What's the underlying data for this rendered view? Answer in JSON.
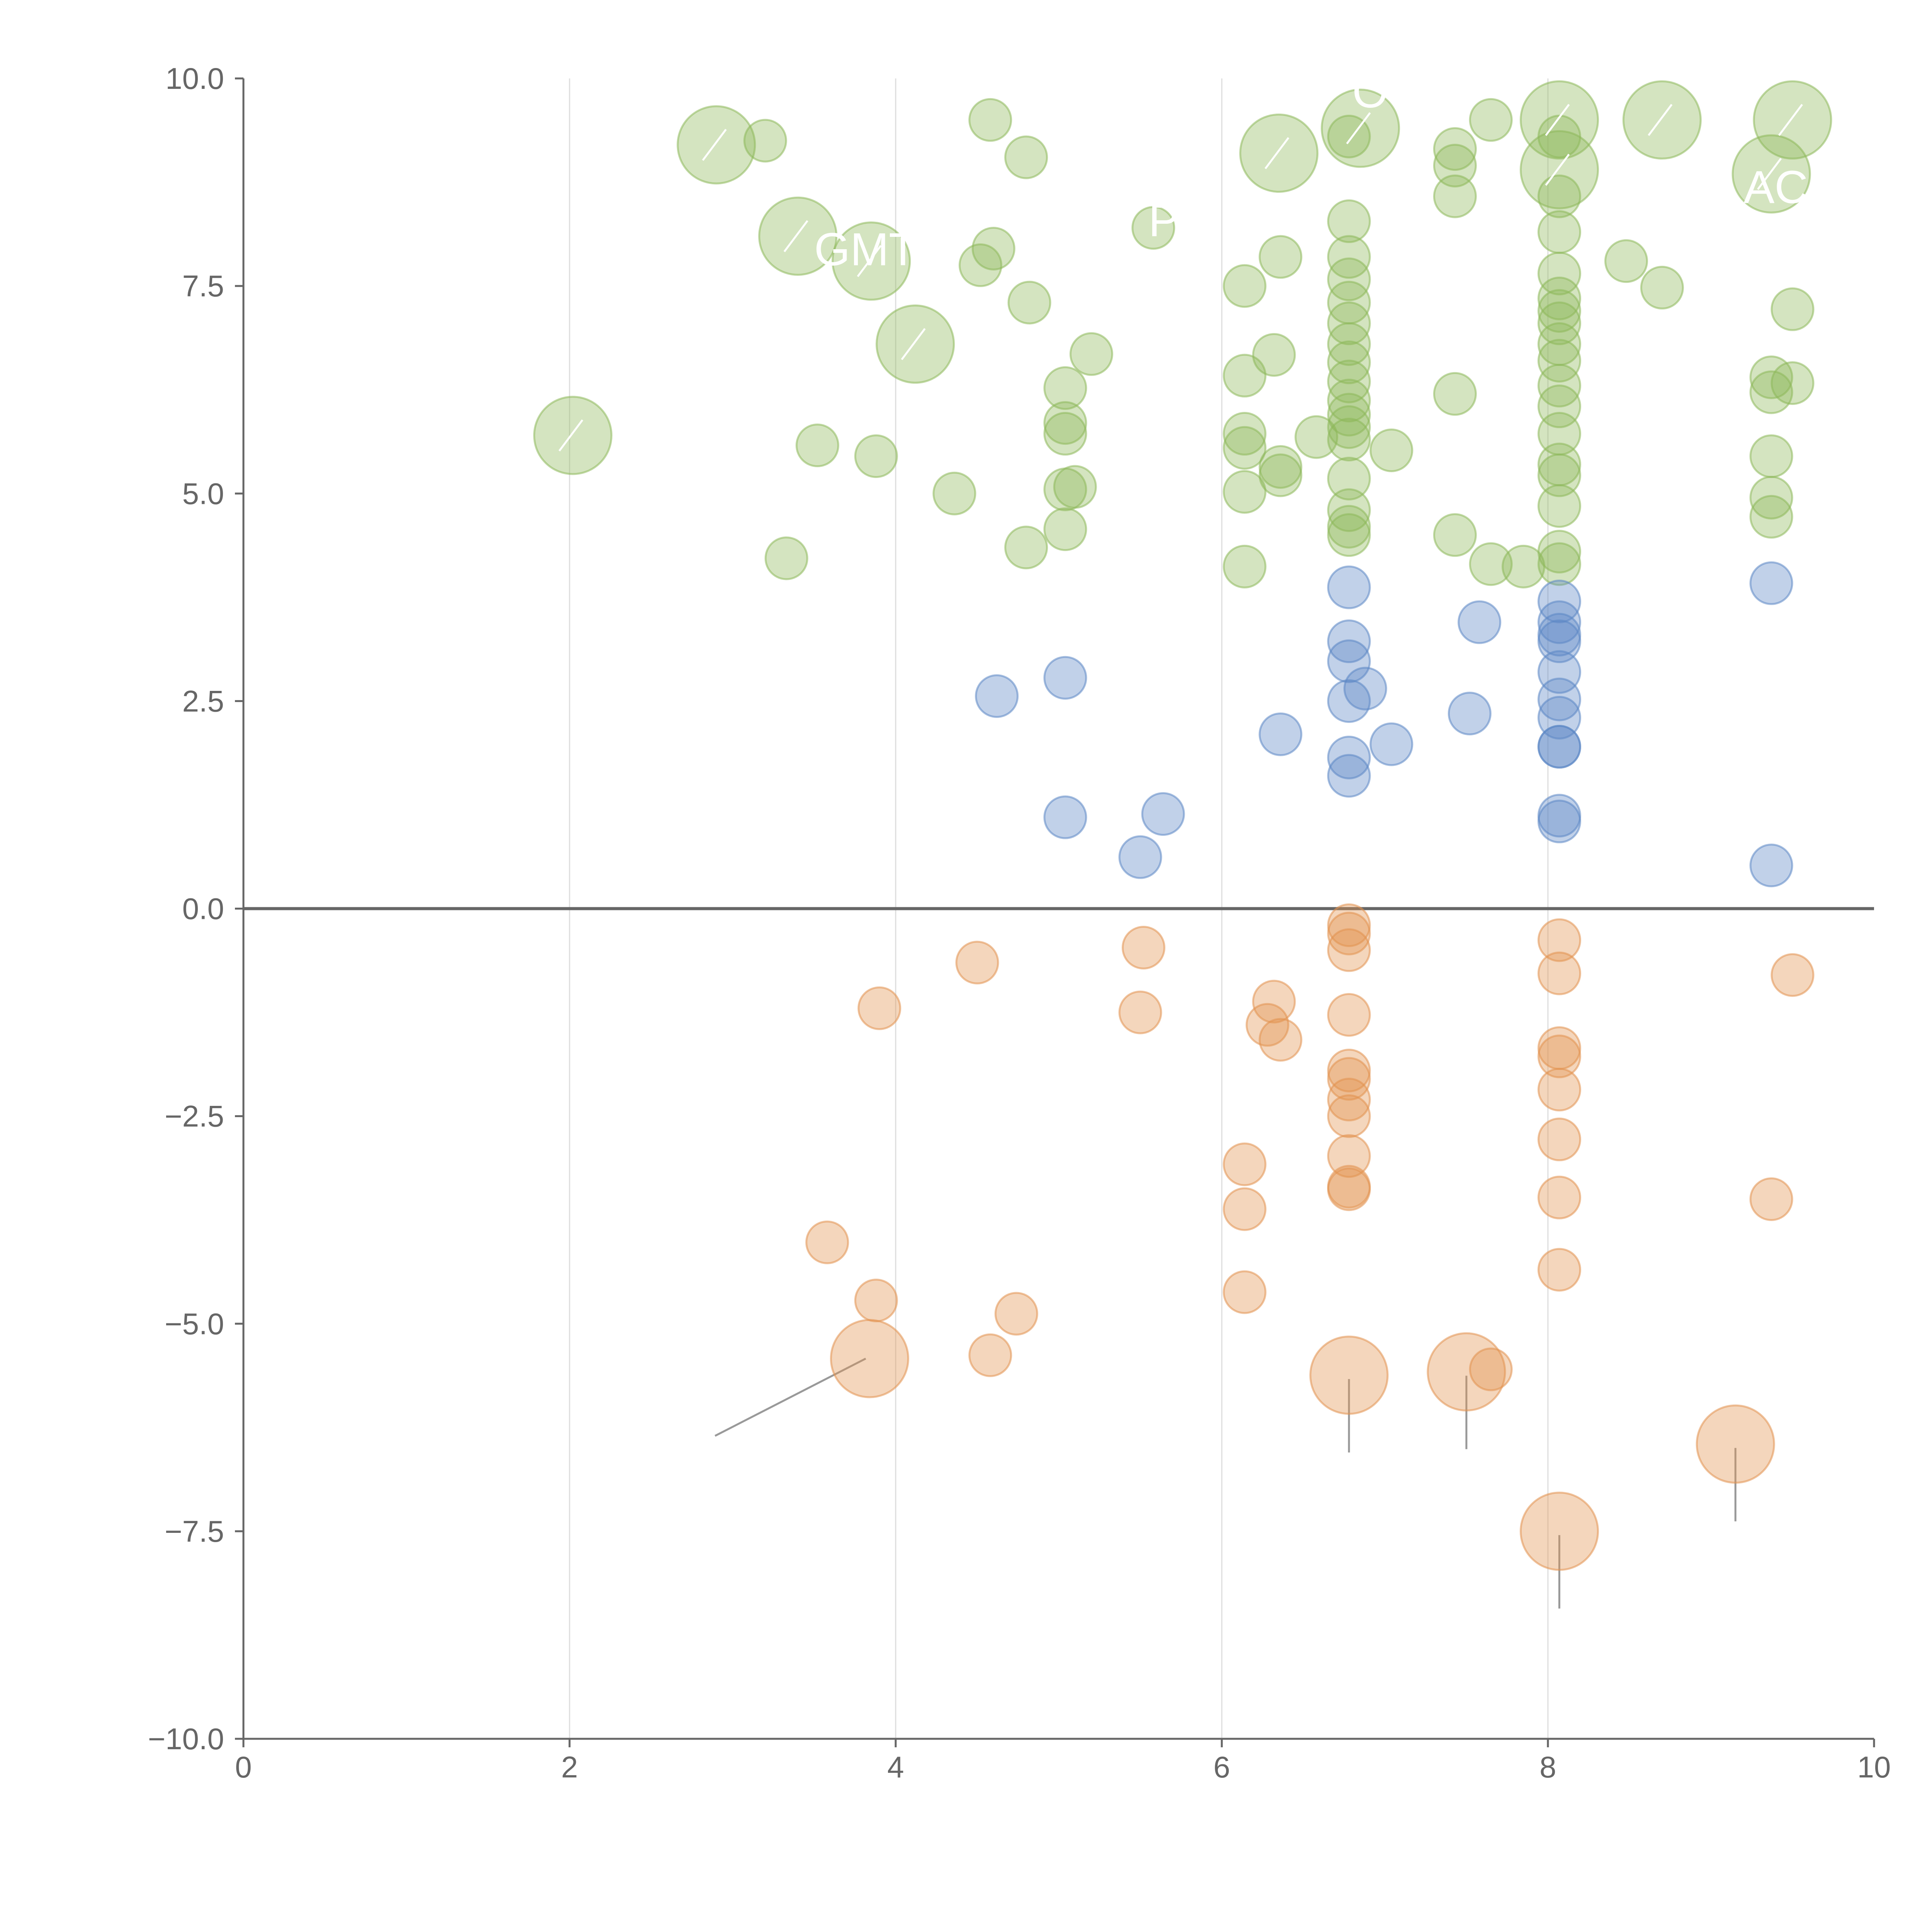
{
  "chart_data": {
    "type": "scatter",
    "title": "",
    "xlabel": "",
    "ylabel": "",
    "xlim": [
      0,
      10
    ],
    "ylim": [
      -10,
      10
    ],
    "xticks": [
      "0",
      "2",
      "4",
      "6",
      "8",
      "10"
    ],
    "yticks": [
      "10.0",
      "7.5",
      "5.0",
      "2.5",
      "0.0",
      "−2.5",
      "−5.0",
      "−7.5",
      "−10.0"
    ],
    "vgrid_x": [
      2,
      4,
      6,
      8
    ],
    "zero_line_y": 0,
    "colors": {
      "green": "#8db85a",
      "blue": "#5b86c4",
      "orange": "#e2924f",
      "axis": "#666666",
      "grid": "#dddddd"
    },
    "series": [
      {
        "name": "green",
        "color": "green",
        "points": [
          [
            2.9,
            9.2,
            1
          ],
          [
            3.2,
            9.25,
            0
          ],
          [
            3.4,
            8.1,
            1
          ],
          [
            3.85,
            7.8,
            1
          ],
          [
            4.12,
            6.8,
            1
          ],
          [
            2.02,
            5.7,
            1
          ],
          [
            3.52,
            5.58,
            0
          ],
          [
            3.88,
            5.45,
            0
          ],
          [
            3.33,
            4.22,
            0
          ],
          [
            4.36,
            5.0,
            0
          ],
          [
            4.58,
            9.5,
            0
          ],
          [
            4.8,
            9.05,
            0
          ],
          [
            4.52,
            7.75,
            0
          ],
          [
            4.6,
            7.95,
            0
          ],
          [
            4.82,
            7.3,
            0
          ],
          [
            5.2,
            6.68,
            0
          ],
          [
            5.04,
            6.27,
            0
          ],
          [
            5.04,
            5.85,
            0
          ],
          [
            5.04,
            5.72,
            0
          ],
          [
            5.04,
            5.05,
            0
          ],
          [
            5.1,
            5.08,
            0
          ],
          [
            4.8,
            4.35,
            0
          ],
          [
            5.04,
            4.57,
            0
          ],
          [
            5.58,
            8.2,
            0
          ],
          [
            6.35,
            9.1,
            1
          ],
          [
            6.36,
            7.85,
            0
          ],
          [
            6.14,
            7.5,
            0
          ],
          [
            6.14,
            6.42,
            0
          ],
          [
            6.32,
            6.67,
            0
          ],
          [
            6.14,
            5.72,
            0
          ],
          [
            6.14,
            5.55,
            0
          ],
          [
            6.36,
            5.32,
            0
          ],
          [
            6.36,
            5.22,
            0
          ],
          [
            6.14,
            5.02,
            0
          ],
          [
            6.14,
            4.12,
            0
          ],
          [
            6.58,
            5.68,
            0
          ],
          [
            7.04,
            5.52,
            0
          ],
          [
            6.85,
            9.4,
            1
          ],
          [
            6.78,
            9.3,
            0
          ],
          [
            6.78,
            8.28,
            0
          ],
          [
            6.78,
            7.85,
            0
          ],
          [
            6.78,
            7.58,
            0
          ],
          [
            6.78,
            7.3,
            0
          ],
          [
            6.78,
            7.05,
            0
          ],
          [
            6.78,
            6.8,
            0
          ],
          [
            6.78,
            6.58,
            0
          ],
          [
            6.78,
            6.35,
            0
          ],
          [
            6.78,
            6.12,
            0
          ],
          [
            6.78,
            5.95,
            0
          ],
          [
            6.78,
            5.8,
            0
          ],
          [
            6.78,
            5.65,
            0
          ],
          [
            6.78,
            5.18,
            0
          ],
          [
            6.78,
            4.8,
            0
          ],
          [
            6.78,
            4.6,
            0
          ],
          [
            6.78,
            4.5,
            0
          ],
          [
            7.43,
            9.15,
            0
          ],
          [
            7.43,
            8.95,
            0
          ],
          [
            7.43,
            8.58,
            0
          ],
          [
            7.65,
            9.5,
            0
          ],
          [
            7.43,
            6.2,
            0
          ],
          [
            7.43,
            4.5,
            0
          ],
          [
            7.65,
            4.15,
            0
          ],
          [
            7.85,
            4.12,
            0
          ],
          [
            8.07,
            9.5,
            1
          ],
          [
            8.07,
            8.9,
            1
          ],
          [
            8.07,
            9.3,
            0
          ],
          [
            8.07,
            8.58,
            0
          ],
          [
            8.07,
            8.15,
            0
          ],
          [
            8.07,
            7.65,
            0
          ],
          [
            8.07,
            7.35,
            0
          ],
          [
            8.07,
            7.2,
            0
          ],
          [
            8.07,
            7.05,
            0
          ],
          [
            8.07,
            6.8,
            0
          ],
          [
            8.07,
            6.6,
            0
          ],
          [
            8.07,
            6.3,
            0
          ],
          [
            8.07,
            6.05,
            0
          ],
          [
            8.07,
            5.72,
            0
          ],
          [
            8.07,
            5.35,
            0
          ],
          [
            8.07,
            5.22,
            0
          ],
          [
            8.07,
            4.85,
            0
          ],
          [
            8.07,
            4.3,
            0
          ],
          [
            8.07,
            4.15,
            0
          ],
          [
            8.48,
            7.8,
            0
          ],
          [
            8.7,
            7.48,
            0
          ],
          [
            8.7,
            9.5,
            1
          ],
          [
            9.37,
            8.85,
            1
          ],
          [
            9.5,
            9.5,
            1
          ],
          [
            9.5,
            7.22,
            0
          ],
          [
            9.37,
            6.4,
            0
          ],
          [
            9.37,
            6.22,
            0
          ],
          [
            9.5,
            6.33,
            0
          ],
          [
            9.37,
            5.45,
            0
          ],
          [
            9.37,
            4.95,
            0
          ],
          [
            9.37,
            4.72,
            0
          ]
        ]
      },
      {
        "name": "blue",
        "color": "blue",
        "points": [
          [
            4.62,
            2.56,
            0
          ],
          [
            5.04,
            2.78,
            0
          ],
          [
            5.04,
            1.1,
            0
          ],
          [
            5.64,
            1.14,
            0
          ],
          [
            5.5,
            0.62,
            0
          ],
          [
            6.36,
            2.1,
            0
          ],
          [
            6.78,
            3.87,
            0
          ],
          [
            6.78,
            3.22,
            0
          ],
          [
            6.78,
            2.98,
            0
          ],
          [
            6.88,
            2.65,
            0
          ],
          [
            6.78,
            2.5,
            0
          ],
          [
            6.78,
            1.82,
            0
          ],
          [
            6.78,
            1.6,
            0
          ],
          [
            7.04,
            1.98,
            0
          ],
          [
            7.58,
            3.45,
            0
          ],
          [
            7.52,
            2.35,
            0
          ],
          [
            8.07,
            3.7,
            0
          ],
          [
            8.07,
            3.45,
            0
          ],
          [
            8.07,
            3.3,
            0
          ],
          [
            8.07,
            3.22,
            0
          ],
          [
            8.07,
            2.85,
            0
          ],
          [
            8.07,
            2.52,
            0
          ],
          [
            8.07,
            2.3,
            0
          ],
          [
            8.07,
            1.95,
            0
          ],
          [
            8.07,
            1.95,
            0
          ],
          [
            8.07,
            1.12,
            0
          ],
          [
            8.07,
            1.05,
            0
          ],
          [
            9.37,
            3.92,
            0
          ],
          [
            9.37,
            0.52,
            0
          ]
        ]
      },
      {
        "name": "orange",
        "color": "orange",
        "points": [
          [
            3.9,
            -1.2,
            0
          ],
          [
            4.5,
            -0.65,
            0
          ],
          [
            5.52,
            -0.47,
            0
          ],
          [
            5.5,
            -1.25,
            0
          ],
          [
            6.32,
            -1.12,
            0
          ],
          [
            6.28,
            -1.4,
            0
          ],
          [
            6.36,
            -1.58,
            0
          ],
          [
            6.78,
            -0.2,
            0
          ],
          [
            6.78,
            -0.3,
            0
          ],
          [
            6.78,
            -0.5,
            0
          ],
          [
            6.78,
            -1.28,
            0
          ],
          [
            6.78,
            -1.95,
            0
          ],
          [
            6.78,
            -2.05,
            0
          ],
          [
            6.78,
            -2.3,
            0
          ],
          [
            6.78,
            -2.5,
            0
          ],
          [
            6.78,
            -2.98,
            0
          ],
          [
            6.78,
            -3.35,
            0
          ],
          [
            6.78,
            -3.38,
            0
          ],
          [
            6.14,
            -3.08,
            0
          ],
          [
            6.14,
            -3.62,
            0
          ],
          [
            6.14,
            -4.62,
            0
          ],
          [
            3.58,
            -4.02,
            0
          ],
          [
            3.88,
            -4.72,
            0
          ],
          [
            4.74,
            -4.88,
            0
          ],
          [
            4.58,
            -5.38,
            0
          ],
          [
            3.84,
            -5.42,
            1
          ],
          [
            6.78,
            -5.62,
            1
          ],
          [
            7.5,
            -5.58,
            1
          ],
          [
            7.65,
            -5.55,
            0
          ],
          [
            9.15,
            -6.45,
            1
          ],
          [
            8.07,
            -7.5,
            1
          ],
          [
            8.07,
            -0.38,
            0
          ],
          [
            8.07,
            -0.78,
            0
          ],
          [
            8.07,
            -1.68,
            0
          ],
          [
            8.07,
            -1.78,
            0
          ],
          [
            8.07,
            -2.18,
            0
          ],
          [
            8.07,
            -2.78,
            0
          ],
          [
            8.07,
            -3.48,
            0
          ],
          [
            8.07,
            -4.35,
            0
          ],
          [
            9.5,
            -0.8,
            0
          ],
          [
            9.37,
            -3.5,
            0
          ]
        ]
      }
    ],
    "annotations": [
      {
        "label": "GMT",
        "x": 3.5,
        "y": 7.75
      },
      {
        "label": "PL",
        "x": 5.55,
        "y": 8.1
      },
      {
        "label": "OV",
        "x": 6.8,
        "y": 9.65
      },
      {
        "label": "AC",
        "x": 9.2,
        "y": 8.5
      }
    ]
  }
}
